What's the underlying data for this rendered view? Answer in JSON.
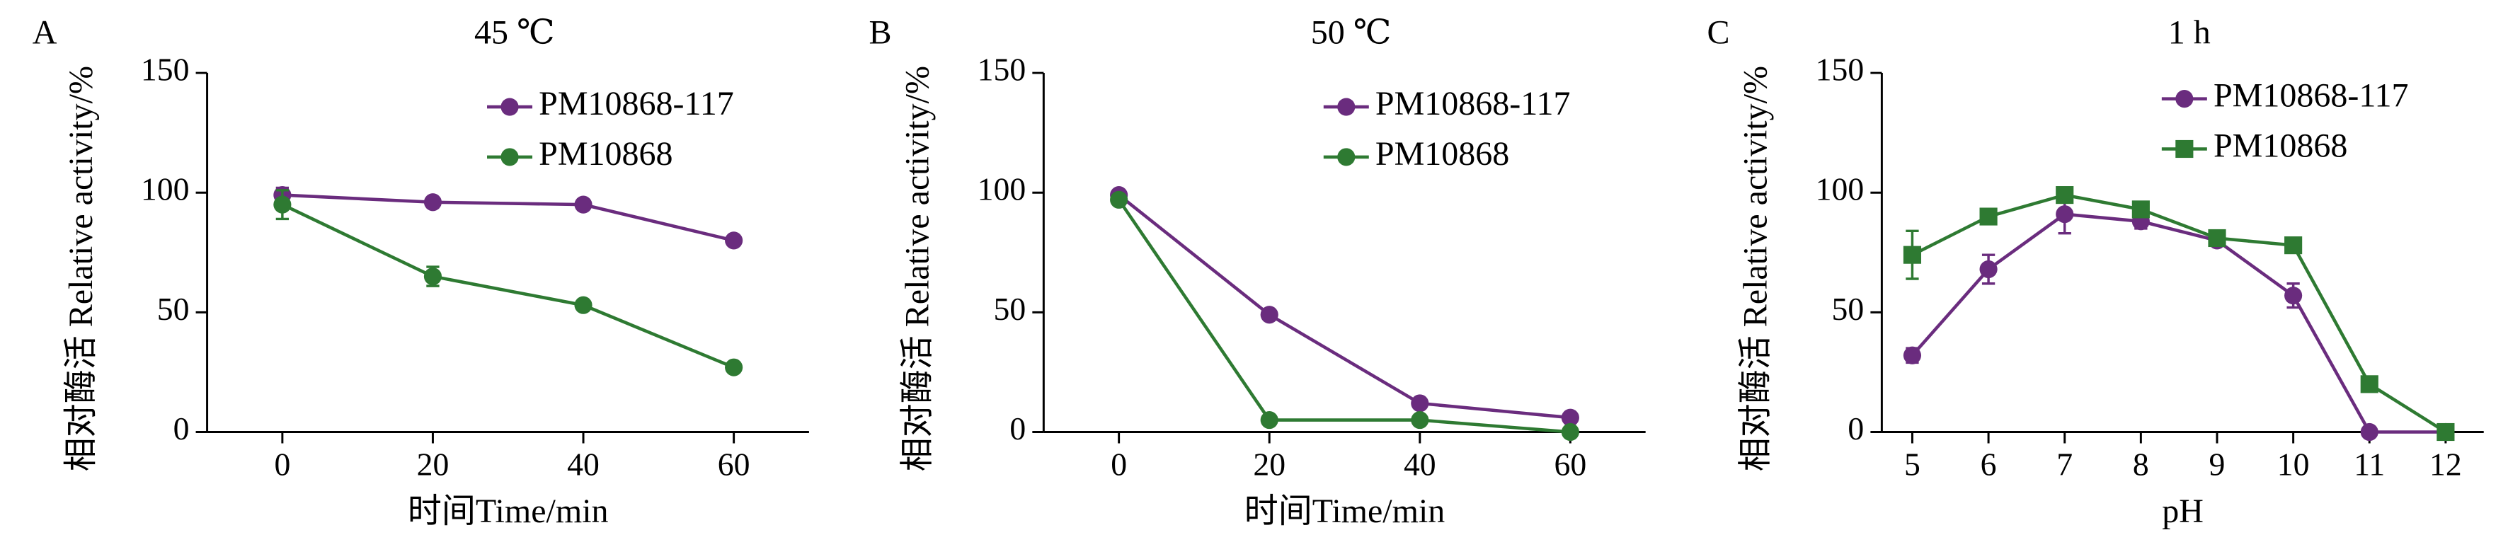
{
  "chart_data": [
    {
      "type": "line",
      "panel_label": "A",
      "title": "45 ℃",
      "x_label": "时间Time/min",
      "y_label": "相对酶活 Relative activity/%",
      "x": [
        0,
        20,
        40,
        60
      ],
      "xlim": [
        -10,
        70
      ],
      "xticks": [
        0,
        20,
        40,
        60
      ],
      "ylim": [
        0,
        150
      ],
      "yticks": [
        0,
        50,
        100,
        150
      ],
      "series": [
        {
          "name": "PM10868-117",
          "color": "#6a2c7e",
          "marker": "circle",
          "values": [
            99,
            96,
            95,
            80
          ],
          "errors": [
            3,
            1,
            1,
            1
          ]
        },
        {
          "name": "PM10868",
          "color": "#2e7a32",
          "marker": "circle",
          "values": [
            95,
            65,
            53,
            27
          ],
          "errors": [
            6,
            4,
            1,
            1
          ]
        }
      ]
    },
    {
      "type": "line",
      "panel_label": "B",
      "title": "50 ℃",
      "x_label": "时间Time/min",
      "y_label": "相对酶活 Relative activity/%",
      "x": [
        0,
        20,
        40,
        60
      ],
      "xlim": [
        -10,
        70
      ],
      "xticks": [
        0,
        20,
        40,
        60
      ],
      "ylim": [
        0,
        150
      ],
      "yticks": [
        0,
        50,
        100,
        150
      ],
      "series": [
        {
          "name": "PM10868-117",
          "color": "#6a2c7e",
          "marker": "circle",
          "values": [
            99,
            49,
            12,
            6
          ],
          "errors": [
            1,
            1,
            1,
            1
          ]
        },
        {
          "name": "PM10868",
          "color": "#2e7a32",
          "marker": "circle",
          "values": [
            97,
            5,
            5,
            0
          ],
          "errors": [
            1,
            1,
            1,
            0
          ]
        }
      ]
    },
    {
      "type": "line",
      "panel_label": "C",
      "title": "1 h",
      "x_label": "pH",
      "y_label": "相对酶活 Relative activity/%",
      "x": [
        5,
        6,
        7,
        8,
        9,
        10,
        11,
        12
      ],
      "xlim": [
        4.6,
        12.5
      ],
      "xticks": [
        5,
        6,
        7,
        8,
        9,
        10,
        11,
        12
      ],
      "ylim": [
        0,
        150
      ],
      "yticks": [
        0,
        50,
        100,
        150
      ],
      "series": [
        {
          "name": "PM10868-117",
          "color": "#6a2c7e",
          "marker": "circle",
          "values": [
            32,
            68,
            91,
            88,
            80,
            57,
            0,
            0
          ],
          "errors": [
            3,
            6,
            8,
            3,
            2,
            5,
            0,
            0
          ]
        },
        {
          "name": "PM10868",
          "color": "#2e7a32",
          "marker": "square",
          "values": [
            74,
            90,
            99,
            93,
            81,
            78,
            20,
            0
          ],
          "errors": [
            10,
            2,
            2,
            2,
            2,
            1,
            1,
            0
          ]
        }
      ]
    }
  ]
}
